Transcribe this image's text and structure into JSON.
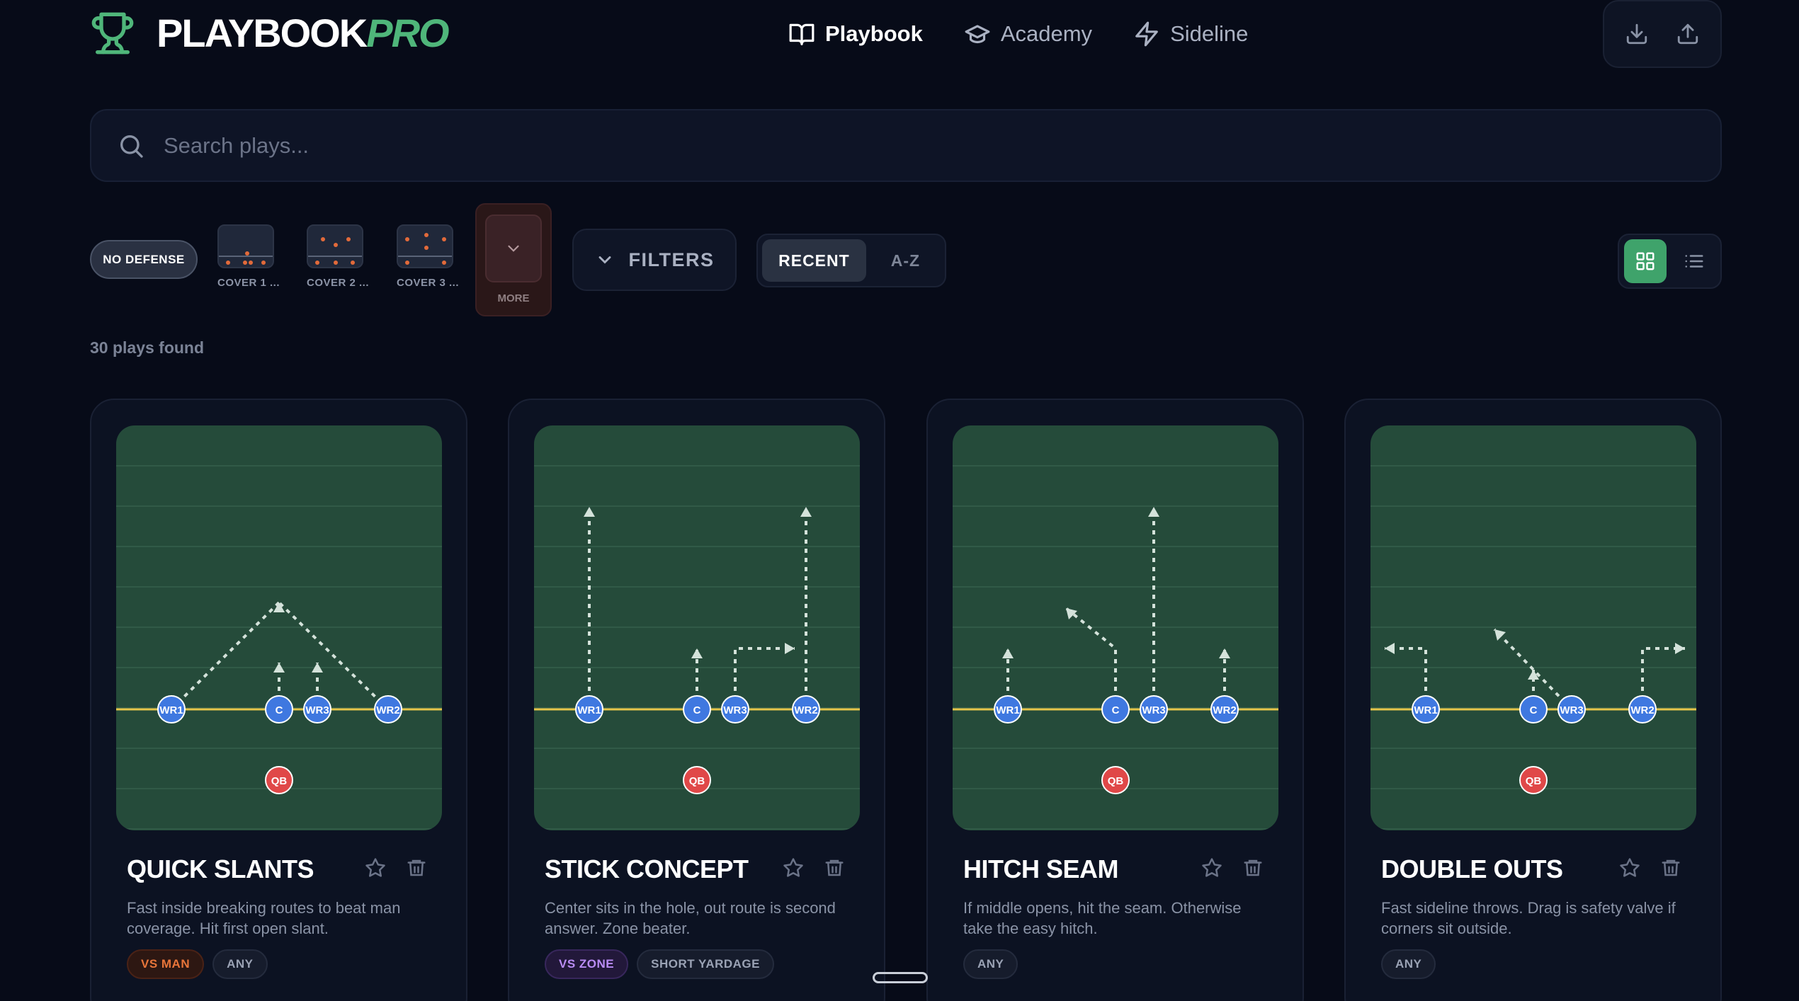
{
  "app": {
    "name_main": "PLAYBOOK",
    "name_accent": "PRO"
  },
  "nav": [
    {
      "label": "Playbook",
      "icon": "book-icon",
      "active": true
    },
    {
      "label": "Academy",
      "icon": "graduation-cap-icon",
      "active": false
    },
    {
      "label": "Sideline",
      "icon": "lightning-icon",
      "active": false
    }
  ],
  "search": {
    "placeholder": "Search plays...",
    "value": ""
  },
  "defense": {
    "no_defense": "NO DEFENSE",
    "covers": [
      "COVER 1 ...",
      "COVER 2 ...",
      "COVER 3 ..."
    ],
    "more": "MORE"
  },
  "filters_label": "FILTERS",
  "sort": {
    "recent": "RECENT",
    "az": "A-Z",
    "selected": "RECENT"
  },
  "view": {
    "selected": "grid"
  },
  "results_count": "30 plays found",
  "colors": {
    "accent": "#4fb67a",
    "field": "#254b3a",
    "player": "#3f78e0",
    "qb": "#e04848"
  },
  "plays": [
    {
      "title": "QUICK SLANTS",
      "description": "Fast inside breaking routes to beat man coverage. Hit first open slant.",
      "tags": [
        {
          "label": "VS MAN",
          "style": "orange"
        },
        {
          "label": "ANY",
          "style": "neutral"
        }
      ]
    },
    {
      "title": "STICK CONCEPT",
      "description": "Center sits in the hole, out route is second answer. Zone beater.",
      "tags": [
        {
          "label": "VS ZONE",
          "style": "purple"
        },
        {
          "label": "SHORT YARDAGE",
          "style": "neutral"
        }
      ]
    },
    {
      "title": "HITCH SEAM",
      "description": "If middle opens, hit the seam. Otherwise take the easy hitch.",
      "tags": [
        {
          "label": "ANY",
          "style": "neutral"
        }
      ]
    },
    {
      "title": "DOUBLE OUTS",
      "description": "Fast sideline throws. Drag is safety valve if corners sit outside.",
      "tags": [
        {
          "label": "ANY",
          "style": "neutral"
        }
      ]
    }
  ],
  "player_labels": {
    "wr1": "WR1",
    "c": "C",
    "wr3": "WR3",
    "wr2": "WR2",
    "qb": "QB"
  }
}
